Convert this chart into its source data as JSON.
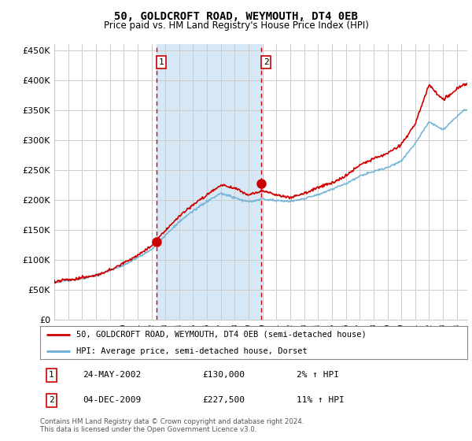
{
  "title": "50, GOLDCROFT ROAD, WEYMOUTH, DT4 0EB",
  "subtitle": "Price paid vs. HM Land Registry's House Price Index (HPI)",
  "hpi_color": "#6baed6",
  "price_color": "#cc0000",
  "shade_color": "#d6e8f5",
  "plot_bg_color": "#ffffff",
  "ylim": [
    0,
    460000
  ],
  "yticks": [
    0,
    50000,
    100000,
    150000,
    200000,
    250000,
    300000,
    350000,
    400000,
    450000
  ],
  "purchase1": {
    "date_num": 2002.38,
    "price": 130000,
    "label": "1",
    "date_str": "24-MAY-2002",
    "pct": "2%"
  },
  "purchase2": {
    "date_num": 2009.92,
    "price": 227500,
    "label": "2",
    "date_str": "04-DEC-2009",
    "pct": "11%"
  },
  "legend_line1": "50, GOLDCROFT ROAD, WEYMOUTH, DT4 0EB (semi-detached house)",
  "legend_line2": "HPI: Average price, semi-detached house, Dorset",
  "footer": "Contains HM Land Registry data © Crown copyright and database right 2024.\nThis data is licensed under the Open Government Licence v3.0.",
  "xmin": 1995.0,
  "xmax": 2024.75
}
